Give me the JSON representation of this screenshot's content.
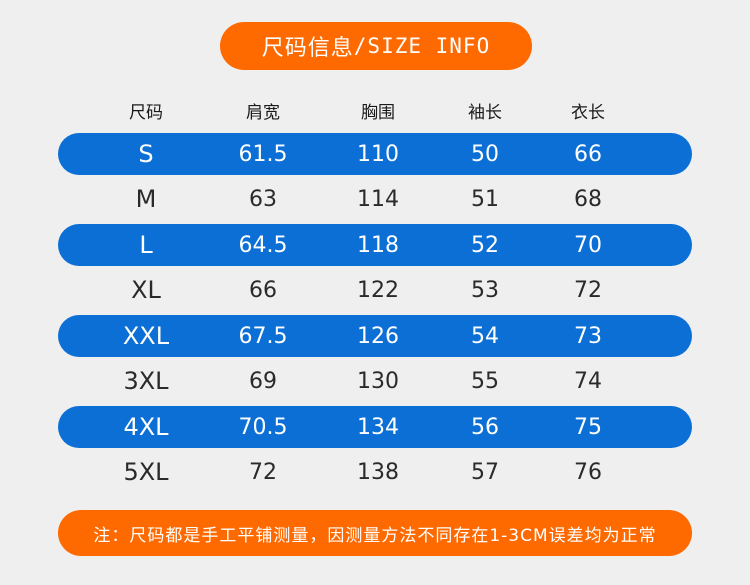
{
  "title": {
    "main": "尺码信息",
    "sub": "/SIZE INFO"
  },
  "headers": [
    "尺码",
    "肩宽",
    "胸围",
    "袖长",
    "衣长"
  ],
  "rows": [
    {
      "size": "S",
      "shoulder": "61.5",
      "chest": "110",
      "sleeve": "50",
      "length": "66"
    },
    {
      "size": "M",
      "shoulder": "63",
      "chest": "114",
      "sleeve": "51",
      "length": "68"
    },
    {
      "size": "L",
      "shoulder": "64.5",
      "chest": "118",
      "sleeve": "52",
      "length": "70"
    },
    {
      "size": "XL",
      "shoulder": "66",
      "chest": "122",
      "sleeve": "53",
      "length": "72"
    },
    {
      "size": "XXL",
      "shoulder": "67.5",
      "chest": "126",
      "sleeve": "54",
      "length": "73"
    },
    {
      "size": "3XL",
      "shoulder": "69",
      "chest": "130",
      "sleeve": "55",
      "length": "74"
    },
    {
      "size": "4XL",
      "shoulder": "70.5",
      "chest": "134",
      "sleeve": "56",
      "length": "75"
    },
    {
      "size": "5XL",
      "shoulder": "72",
      "chest": "138",
      "sleeve": "57",
      "length": "76"
    }
  ],
  "note": "注：尺码都是手工平铺测量，因测量方法不同存在1-3CM误差均为正常",
  "colors": {
    "accent": "#ff6a00",
    "row_highlight": "#0b6fd6",
    "background": "#efefef"
  }
}
